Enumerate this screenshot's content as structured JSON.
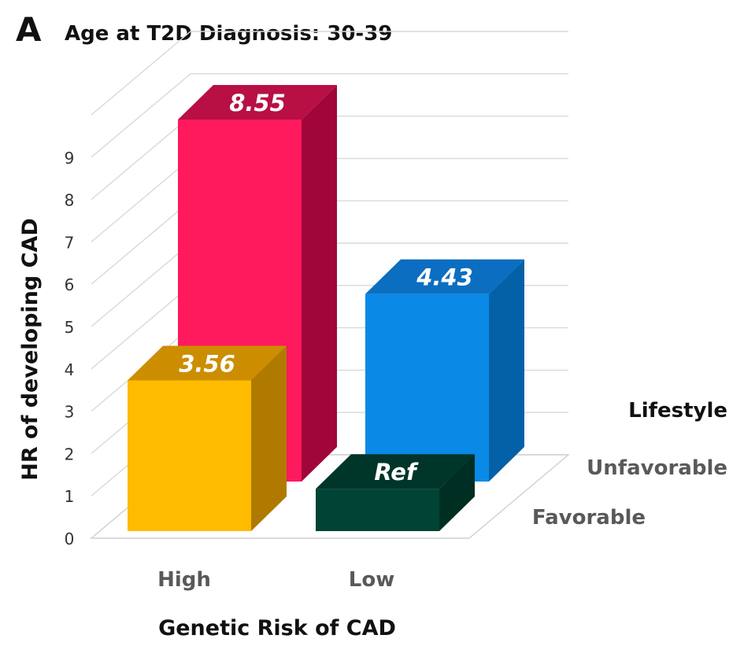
{
  "panel_label": "A",
  "chart_data": {
    "type": "bar",
    "title": "Age at T2D Diagnosis: 30-39",
    "ylabel": "HR of developing CAD",
    "xlabel": "Genetic Risk of CAD",
    "categories": [
      "High",
      "Low"
    ],
    "legend_title": "Lifestyle",
    "ylim": [
      0,
      9
    ],
    "yticks": [
      0,
      1,
      2,
      3,
      4,
      5,
      6,
      7,
      8,
      9
    ],
    "grid": true,
    "series": [
      {
        "name": "Unfavorable",
        "values": [
          8.55,
          4.43
        ],
        "labels": [
          "8.55",
          "4.43"
        ],
        "colors": {
          "front": [
            "#FF1A5E",
            "#0A8AE6"
          ],
          "side": [
            "#A0063A",
            "#0461A8"
          ],
          "top": [
            "#B80F45",
            "#0B6EC0"
          ]
        }
      },
      {
        "name": "Favorable",
        "values": [
          3.56,
          1.0
        ],
        "labels": [
          "3.56",
          "Ref"
        ],
        "colors": {
          "front": [
            "#FFBB00",
            "#004435"
          ],
          "side": [
            "#B07A00",
            "#002E22"
          ],
          "top": [
            "#CC8E00",
            "#00352A"
          ]
        }
      }
    ]
  }
}
